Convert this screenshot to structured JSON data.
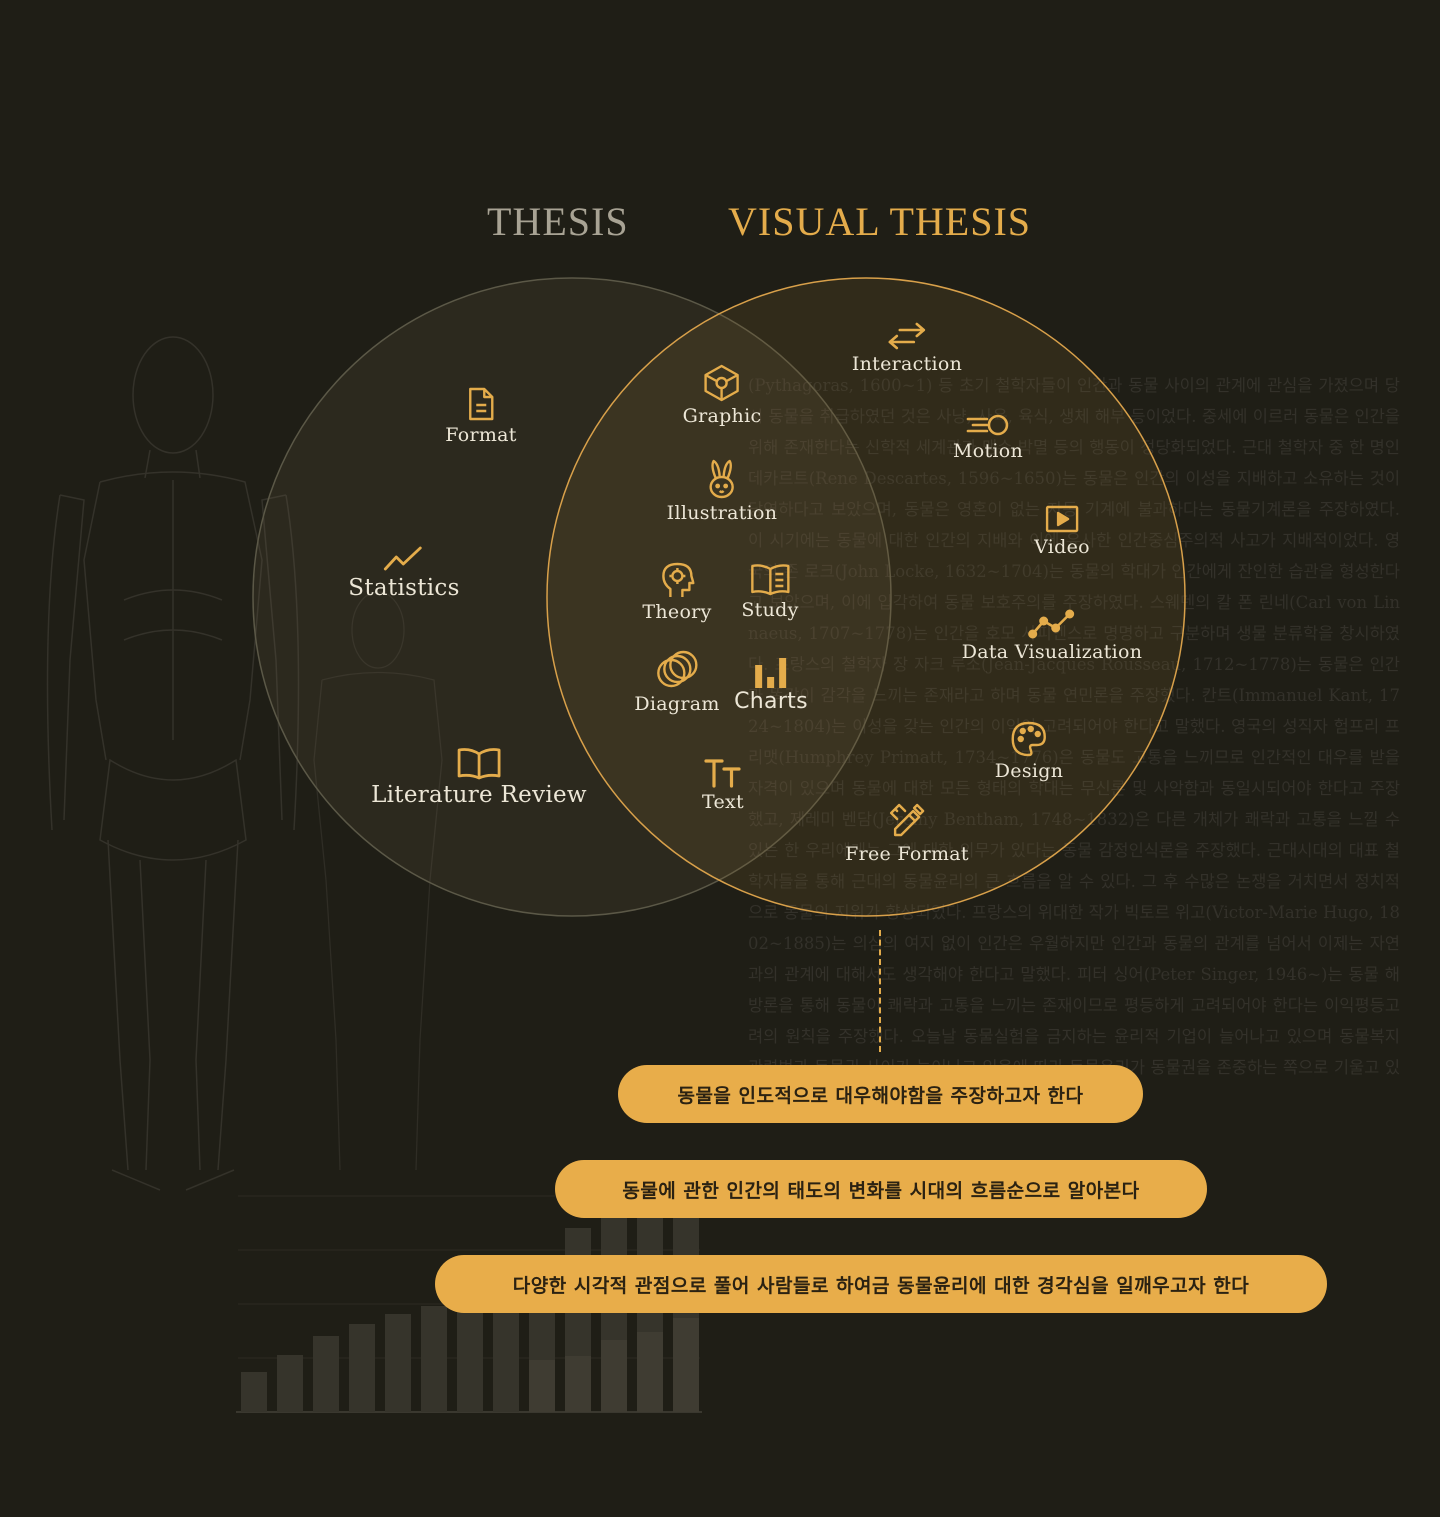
{
  "headings": {
    "thesis": "THESIS",
    "visual_thesis": "VISUAL THESIS"
  },
  "colors": {
    "background": "#1f1e16",
    "accent": "#e4ac4b",
    "thesis_heading": "#a8a394",
    "label": "#ece6d6",
    "pill": "#e8ad4a"
  },
  "thesis_only": [
    {
      "label": "Format",
      "icon": "document-icon"
    },
    {
      "label": "Statistics",
      "icon": "trend-line-icon"
    },
    {
      "label": "Literature Review",
      "icon": "open-book-icon"
    }
  ],
  "overlap": [
    {
      "label": "Graphic",
      "icon": "cube-icon"
    },
    {
      "label": "Illustration",
      "icon": "rabbit-icon"
    },
    {
      "label": "Theory",
      "icon": "head-gear-icon"
    },
    {
      "label": "Study",
      "icon": "book-icon"
    },
    {
      "label": "Diagram",
      "icon": "overlapping-circles-icon"
    },
    {
      "label": "Charts",
      "icon": "bar-chart-icon"
    },
    {
      "label": "Text",
      "icon": "text-size-icon"
    }
  ],
  "visual_only": [
    {
      "label": "Interaction",
      "icon": "arrows-icon"
    },
    {
      "label": "Motion",
      "icon": "motion-icon"
    },
    {
      "label": "Video",
      "icon": "play-icon"
    },
    {
      "label": "Data Visualization",
      "icon": "line-chart-icon"
    },
    {
      "label": "Design",
      "icon": "palette-icon"
    },
    {
      "label": "Free Format",
      "icon": "pencil-ruler-icon"
    }
  ],
  "goals": [
    "동물을 인도적으로 대우해야함을 주장하고자 한다",
    "동물에 관한 인간의 태도의 변화를 시대의 흐름순으로 알아본다",
    "다양한 시각적 관점으로 풀어 사람들로 하여금 동물윤리에 대한 경각심을 일깨우고자 한다"
  ],
  "background_text": "(Pythagoras, 1600~1) 등 초기 철학자들이 인간과 동물 사이의 관계에 관심을 가졌으며 당시 동물을 취급하였던 것은 사냥, 사육, 육식, 생체 해부 등이었다. 중세에 이르러 동물은 인간을 위해 존재한다는 신학적 세계관과 맹수 박멸 등의 행동이 정당화되었다. 근대 철학자 중 한 명인 데카르트(Rene Descartes, 1596~1650)는 동물은 인간의 이성을 지배하고 소유하는 것이 당연하다고 보았으며, 동물은 영혼이 없는 자동 기계에 불과하다는 동물기계론을 주장하였다. 이 시기에는 동물에 대한 인간의 지배와 이에 유사한 인간중심주의적 사고가 지배적이었다. 영국의 존 로크(John Locke, 1632~1704)는 동물의 학대가 인간에게 잔인한 습관을 형성한다고 보았으며, 이에 입각하여 동물 보호주의를 주장하였다. 스웨덴의 칼 폰 린네(Carl von Linnaeus, 1707~1778)는 인간을 호모 사피엔스로 명명하고 구분하며 생물 분류학을 창시하였다. 프랑스의 철학자 장 자크 루소(Jean-Jacques Rousseau, 1712~1778)는 동물은 인간과 똑같이 감각을 느끼는 존재라고 하며 동물 연민론을 주장했다. 칸트(Immanuel Kant, 1724~1804)는 이성을 갖는 인간의 이익이 고려되어야 한다고 말했다. 영국의 성직자 험프리 프리맷(Humphrey Primatt, 1734~1776)은 동물도 고통을 느끼므로 인간적인 대우를 받을 자격이 있으며 동물에 대한 모든 형태의 학대는 무신론 및 사악함과 동일시되어야 한다고 주장했고, 제레미 벤담(Jeremy Bentham, 1748~1832)은 다른 개체가 쾌락과 고통을 느낄 수 있는 한 우리에게는 그에 대한 의무가 있다는 동물 감정인식론을 주장했다. 근대시대의 대표 철학자들을 통해 근대의 동물윤리의 큰 흐름을 알 수 있다. 그 후 수많은 논쟁을 거치면서 정치적으로 동물의 지위가 향상되었다. 프랑스의 위대한 작가 빅토르 위고(Victor-Marie Hugo, 1802~1885)는 의심의 여지 없이 인간은 우월하지만 인간과 동물의 관계를 넘어서 이제는 자연과의 관계에 대해서도 생각해야 한다고 말했다. 피터 싱어(Peter Singer, 1946~)는 동물 해방론을 통해 동물이 쾌락과 고통을 느끼는 존재이므로 평등하게 고려되어야 한다는 이익평등고려의 원칙을 주장했다. 오늘날 동물실험을 금지하는 윤리적 기업이 늘어나고 있으며 동물복지 관련법과 동물권 사이가 늘어나고 있음에 따라 동물윤리가 동물권을 존중하는 쪽으로 기울고 있는 점을 명백히 알 수 있다"
}
